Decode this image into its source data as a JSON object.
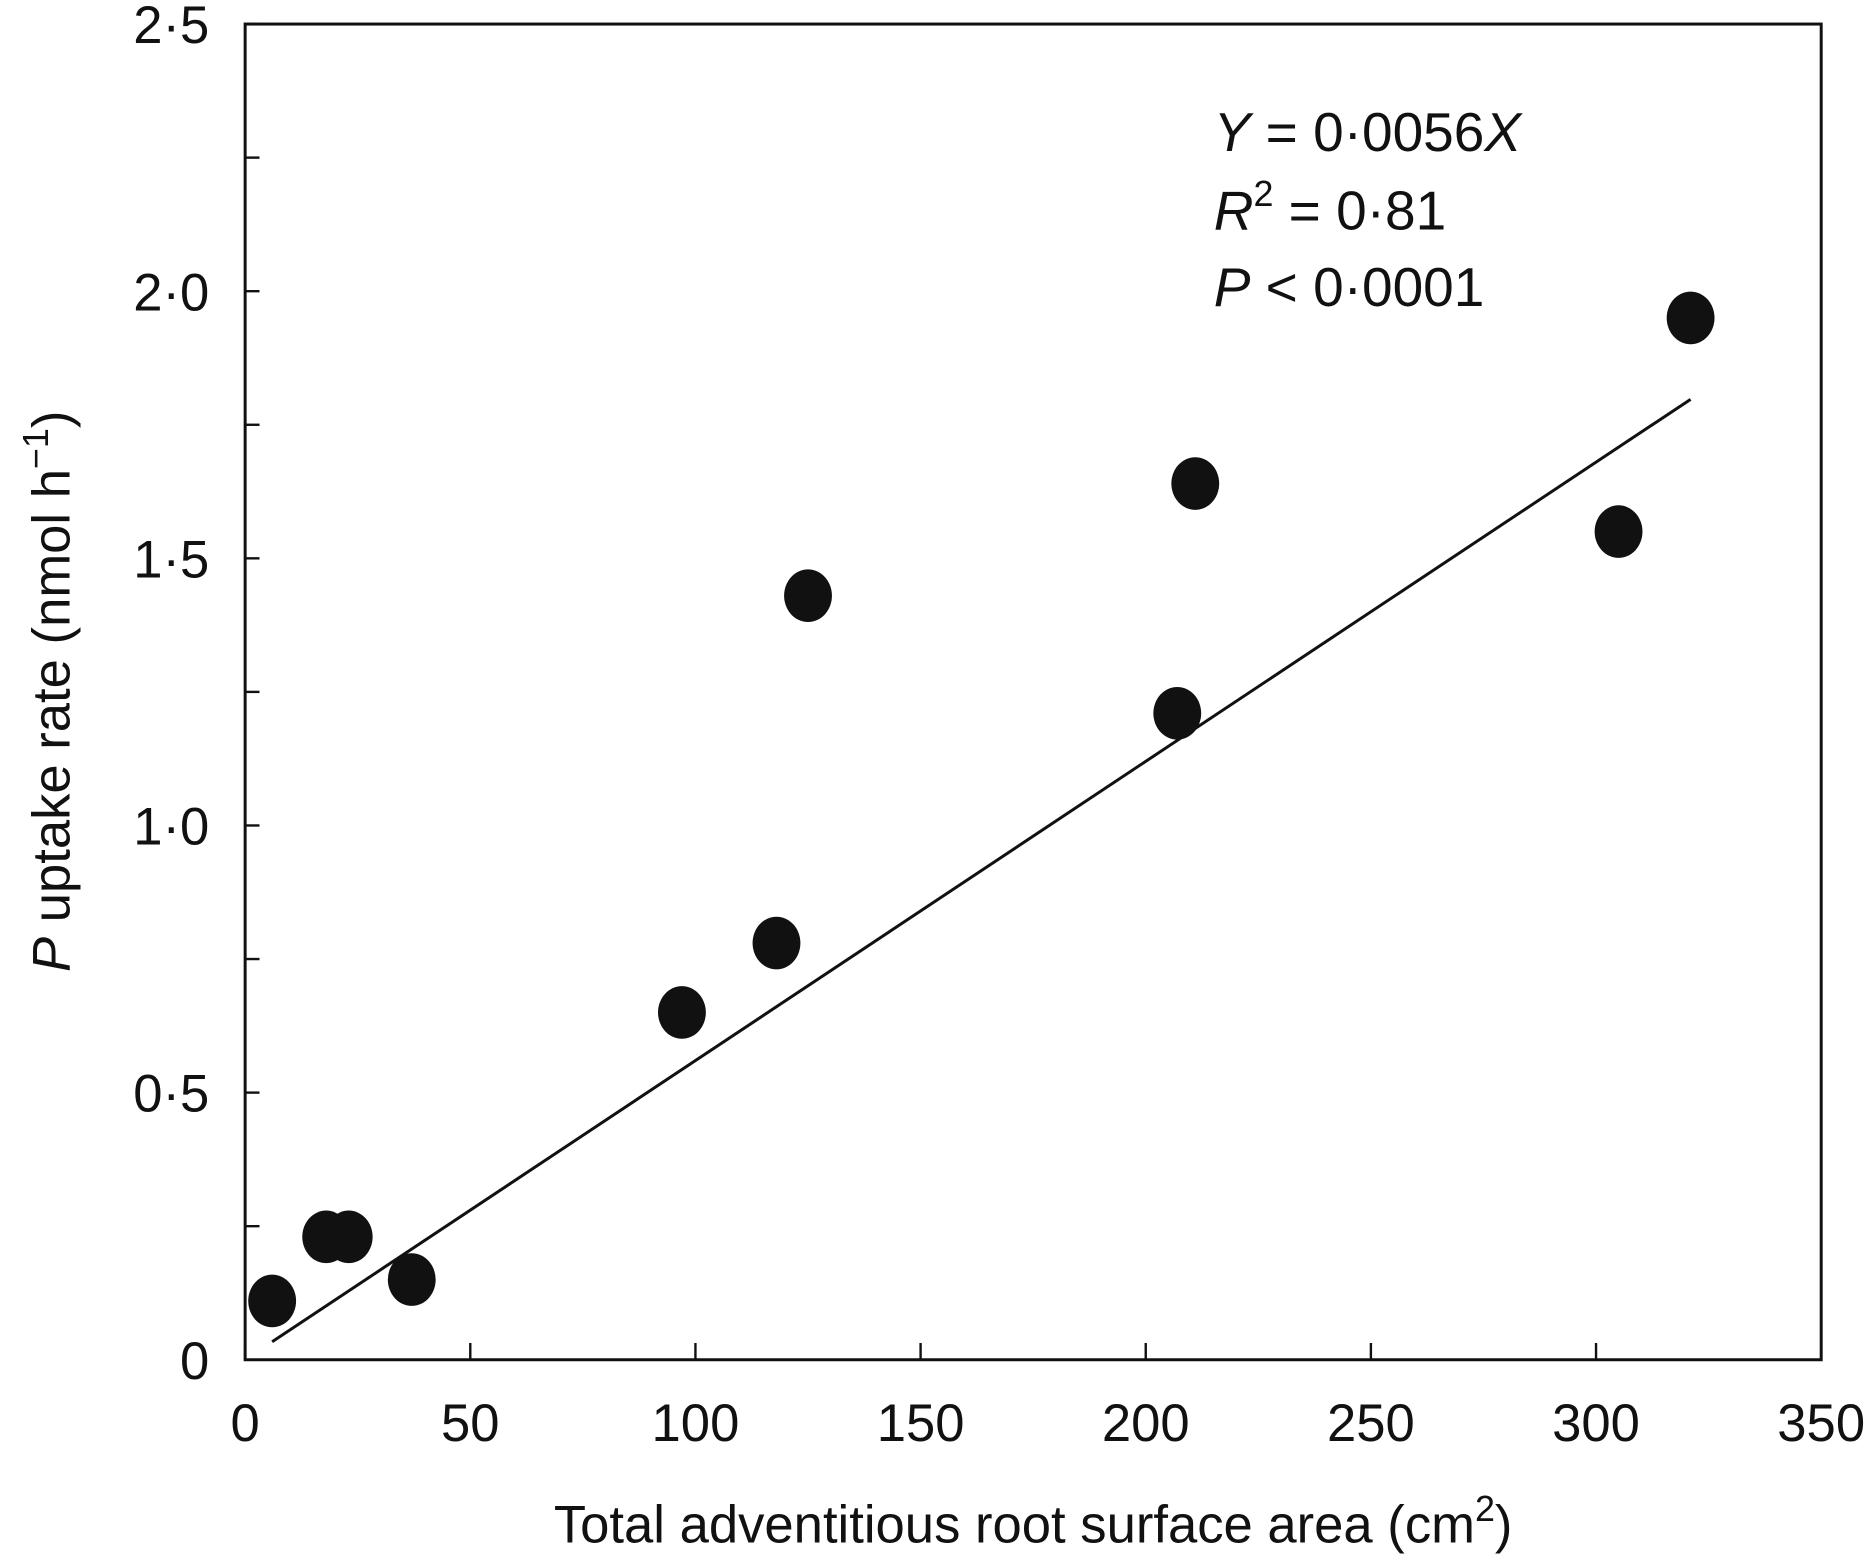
{
  "chart_data": {
    "type": "scatter",
    "title": "",
    "xlabel": "Total adventitious root surface area (cm",
    "xlabel_sup": "2",
    "xlabel_end": ")",
    "ylabel_italic": "P",
    "ylabel": " uptake rate (nmol h",
    "ylabel_sup": "−1",
    "ylabel_end": ")",
    "xlim": [
      0,
      350
    ],
    "ylim": [
      0,
      2.5
    ],
    "xticks": [
      0,
      50,
      100,
      150,
      200,
      250,
      300,
      350
    ],
    "xtick_labels": [
      "0",
      "50",
      "100",
      "150",
      "200",
      "250",
      "300",
      "350"
    ],
    "yticks": [
      0,
      0.5,
      1.0,
      1.5,
      2.0,
      2.5
    ],
    "ytick_labels": [
      "0",
      "0·5",
      "1·0",
      "1·5",
      "2·0",
      "2·5"
    ],
    "y_minor_step": 0.25,
    "grid": false,
    "marker_color": "#111111",
    "points": [
      {
        "x": 6,
        "y": 0.11
      },
      {
        "x": 18,
        "y": 0.23
      },
      {
        "x": 23,
        "y": 0.23
      },
      {
        "x": 37,
        "y": 0.15
      },
      {
        "x": 97,
        "y": 0.65
      },
      {
        "x": 118,
        "y": 0.78
      },
      {
        "x": 125,
        "y": 1.43
      },
      {
        "x": 207,
        "y": 1.21
      },
      {
        "x": 211,
        "y": 1.64
      },
      {
        "x": 305,
        "y": 1.55
      },
      {
        "x": 321,
        "y": 1.95
      }
    ],
    "fit": {
      "slope": 0.0056,
      "intercept": 0,
      "x_range": [
        6,
        321
      ]
    },
    "annotations": {
      "eq_lhs": "Y",
      "eq_rhs": " = 0·0056",
      "eq_var": "X",
      "r2_lhs": "R",
      "r2_sup": "2",
      "r2_rhs": " = 0·81",
      "p_lhs": "P",
      "p_rhs": " < 0·0001"
    }
  }
}
